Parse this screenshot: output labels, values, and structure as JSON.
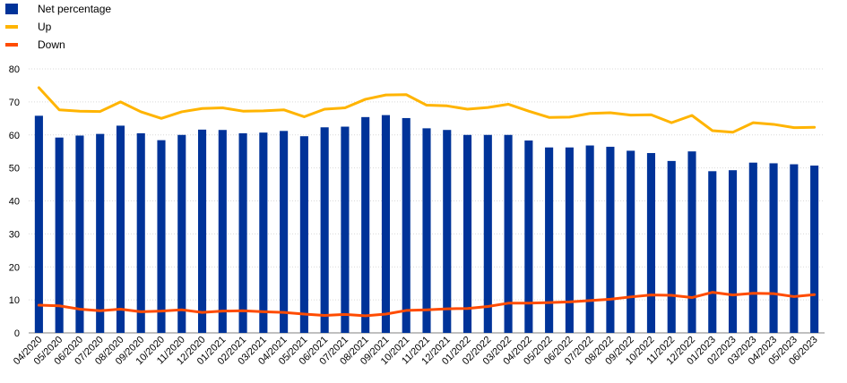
{
  "legend": {
    "net_label": "Net percentage",
    "up_label": "Up",
    "down_label": "Down"
  },
  "colors": {
    "net": "#003399",
    "up": "#FFB400",
    "down": "#FF4B00",
    "grid": "#d9d9d9",
    "axis": "#808080"
  },
  "chart_data": {
    "type": "bar",
    "title": "",
    "xlabel": "",
    "ylabel": "",
    "ylim": [
      0,
      80
    ],
    "yticks": [
      0,
      10,
      20,
      30,
      40,
      50,
      60,
      70,
      80
    ],
    "grid": true,
    "legend_position": "top-left",
    "categories": [
      "04/2020",
      "05/2020",
      "06/2020",
      "07/2020",
      "08/2020",
      "09/2020",
      "10/2020",
      "11/2020",
      "12/2020",
      "01/2021",
      "02/2021",
      "03/2021",
      "04/2021",
      "05/2021",
      "06/2021",
      "07/2021",
      "08/2021",
      "09/2021",
      "10/2021",
      "11/2021",
      "12/2021",
      "01/2022",
      "02/2022",
      "03/2022",
      "04/2022",
      "05/2022",
      "06/2022",
      "07/2022",
      "08/2022",
      "09/2022",
      "10/2022",
      "11/2022",
      "12/2022",
      "01/2023",
      "02/2023",
      "03/2023",
      "04/2023",
      "05/2023",
      "06/2023"
    ],
    "series": [
      {
        "name": "Net percentage",
        "kind": "bar",
        "values": [
          65.8,
          59.2,
          59.8,
          60.3,
          62.8,
          60.5,
          58.4,
          60.0,
          61.6,
          61.5,
          60.5,
          60.7,
          61.2,
          59.6,
          62.3,
          62.5,
          65.4,
          66.0,
          65.1,
          62.0,
          61.5,
          60.0,
          60.0,
          60.0,
          58.3,
          56.2,
          56.2,
          56.8,
          56.4,
          55.2,
          54.5,
          52.1,
          55.0,
          49.0,
          49.3,
          51.6,
          51.4,
          51.1,
          50.7
        ]
      },
      {
        "name": "Up",
        "kind": "line",
        "values": [
          74.3,
          67.6,
          67.2,
          67.1,
          70.0,
          67.0,
          65.0,
          67.0,
          68.0,
          68.2,
          67.2,
          67.3,
          67.6,
          65.5,
          67.8,
          68.2,
          70.8,
          72.1,
          72.2,
          69.0,
          68.8,
          67.8,
          68.3,
          69.3,
          67.2,
          65.3,
          65.4,
          66.5,
          66.7,
          66.0,
          66.1,
          63.7,
          65.9,
          61.3,
          60.8,
          63.7,
          63.2,
          62.2,
          62.3
        ]
      },
      {
        "name": "Down",
        "kind": "line",
        "values": [
          8.4,
          8.2,
          7.2,
          6.7,
          7.2,
          6.4,
          6.6,
          7.0,
          6.2,
          6.6,
          6.7,
          6.4,
          6.2,
          5.7,
          5.3,
          5.6,
          5.2,
          5.7,
          6.8,
          7.0,
          7.3,
          7.4,
          8.0,
          9.0,
          9.0,
          9.2,
          9.4,
          9.8,
          10.2,
          10.9,
          11.5,
          11.4,
          10.7,
          12.3,
          11.5,
          12.0,
          11.9,
          11.0,
          11.6
        ]
      }
    ]
  }
}
